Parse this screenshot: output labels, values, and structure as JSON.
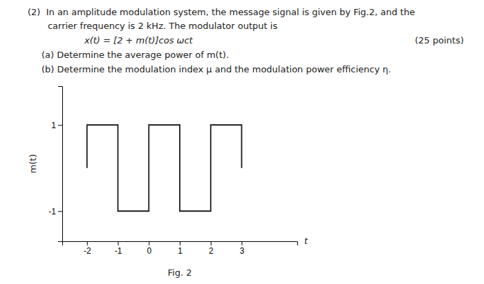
{
  "chart_data": {
    "type": "line",
    "annotations": [
      "(2)  In an amplitude modulation system, the message signal is given by Fig.2, and the",
      "       carrier frequency is 2 kHz. The modulator output is",
      "x(t) = [2 + m(t)]cos ωct",
      "(25 points)",
      "(a) Determine the average power of m(t).",
      "(b) Determine the modulation index μ and the modulation power efficiency η.",
      "Fig. 2"
    ],
    "xlabel": "t",
    "ylabel": "m(t)",
    "x": [
      -2,
      -2,
      -1,
      -1,
      -1,
      -1,
      0,
      0,
      0,
      0,
      1,
      1,
      1,
      1,
      2,
      2,
      2,
      2,
      3,
      3
    ],
    "values": [
      0,
      1,
      1,
      0,
      0,
      -1,
      -1,
      0,
      0,
      1,
      1,
      0,
      0,
      -1,
      -1,
      0,
      0,
      1,
      1,
      0
    ],
    "color": "#1a1a1a",
    "xlim": [
      -2.8,
      4.8
    ],
    "ylim": [
      -1.7,
      1.9
    ],
    "xticks": [
      -2,
      -1,
      0,
      1,
      2,
      3
    ],
    "yticks": [
      -1,
      1
    ],
    "grid": false
  }
}
